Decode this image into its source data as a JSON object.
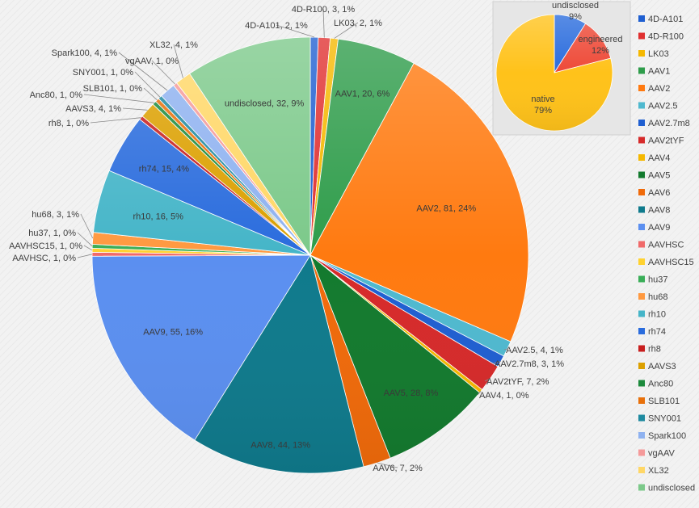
{
  "chart_data": [
    {
      "type": "pie",
      "title": "",
      "slices": [
        {
          "name": "4D-A101",
          "count": 2,
          "percent": "1%",
          "color": "#1f5fd1"
        },
        {
          "name": "4D-R100",
          "count": 3,
          "percent": "1%",
          "color": "#e03030"
        },
        {
          "name": "LK03",
          "count": 2,
          "percent": "1%",
          "color": "#f5b800"
        },
        {
          "name": "AAV1",
          "count": 20,
          "percent": "6%",
          "color": "#2e9c4a"
        },
        {
          "name": "AAV2",
          "count": 81,
          "percent": "24%",
          "color": "#ff7a10"
        },
        {
          "name": "AAV2.5",
          "count": 4,
          "percent": "1%",
          "color": "#4fb9cf"
        },
        {
          "name": "AAV2.7m8",
          "count": 3,
          "percent": "1%",
          "color": "#1f5fd1"
        },
        {
          "name": "AAV2tYF",
          "count": 7,
          "percent": "2%",
          "color": "#d62a2a"
        },
        {
          "name": "AAV4",
          "count": 1,
          "percent": "0%",
          "color": "#f5b800"
        },
        {
          "name": "AAV5",
          "count": 28,
          "percent": "8%",
          "color": "#137a2e"
        },
        {
          "name": "AAV6",
          "count": 7,
          "percent": "2%",
          "color": "#f06a0a"
        },
        {
          "name": "AAV8",
          "count": 44,
          "percent": "13%",
          "color": "#0f7a8c"
        },
        {
          "name": "AAV9",
          "count": 55,
          "percent": "16%",
          "color": "#5b8ff0"
        },
        {
          "name": "AAVHSC",
          "count": 1,
          "percent": "0%",
          "color": "#f06a6a"
        },
        {
          "name": "AAVHSC15",
          "count": 1,
          "percent": "0%",
          "color": "#ffd230"
        },
        {
          "name": "hu37",
          "count": 1,
          "percent": "0%",
          "color": "#3aae58"
        },
        {
          "name": "hu68",
          "count": 3,
          "percent": "1%",
          "color": "#ff9940"
        },
        {
          "name": "rh10",
          "count": 16,
          "percent": "5%",
          "color": "#45b5c8"
        },
        {
          "name": "rh74",
          "count": 15,
          "percent": "4%",
          "color": "#2a6cdd"
        },
        {
          "name": "rh8",
          "count": 1,
          "percent": "0%",
          "color": "#c81e1e"
        },
        {
          "name": "AAVS3",
          "count": 4,
          "percent": "1%",
          "color": "#dca000"
        },
        {
          "name": "Anc80",
          "count": 1,
          "percent": "0%",
          "color": "#1c8a3c"
        },
        {
          "name": "SLB101",
          "count": 1,
          "percent": "0%",
          "color": "#e8700a"
        },
        {
          "name": "SNY001",
          "count": 1,
          "percent": "0%",
          "color": "#1f8aa0"
        },
        {
          "name": "Spark100",
          "count": 4,
          "percent": "1%",
          "color": "#8fb2f0"
        },
        {
          "name": "vgAAV",
          "count": 1,
          "percent": "0%",
          "color": "#f59a9a"
        },
        {
          "name": "XL32",
          "count": 4,
          "percent": "1%",
          "color": "#ffd766"
        },
        {
          "name": "undisclosed",
          "count": 32,
          "percent": "9%",
          "color": "#7cc98a"
        }
      ],
      "data_labels": [
        {
          "name": "4D-A101",
          "text": "4D-A101, 2, 1%"
        },
        {
          "name": "4D-R100",
          "text": "4D-R100, 3, 1%"
        },
        {
          "name": "LK03",
          "text": "LK03, 2, 1%"
        },
        {
          "name": "AAV1",
          "text": "AAV1, 20, 6%"
        },
        {
          "name": "AAV2",
          "text": "AAV2, 81, 24%"
        },
        {
          "name": "AAV2.5",
          "text": "AAV2.5, 4, 1%"
        },
        {
          "name": "AAV2.7m8",
          "text": "AAV2.7m8, 3, 1%"
        },
        {
          "name": "AAV2tYF",
          "text": "AAV2tYF, 7, 2%"
        },
        {
          "name": "AAV4",
          "text": "AAV4, 1, 0%"
        },
        {
          "name": "AAV5",
          "text": "AAV5, 28, 8%"
        },
        {
          "name": "AAV6",
          "text": "AAV6, 7, 2%"
        },
        {
          "name": "AAV8",
          "text": "AAV8, 44, 13%"
        },
        {
          "name": "AAV9",
          "text": "AAV9, 55, 16%"
        },
        {
          "name": "AAVHSC",
          "text": "AAVHSC, 1, 0%"
        },
        {
          "name": "AAVHSC15",
          "text": "AAVHSC15, 1, 0%"
        },
        {
          "name": "hu37",
          "text": "hu37, 1, 0%"
        },
        {
          "name": "hu68",
          "text": "hu68, 3, 1%"
        },
        {
          "name": "rh10",
          "text": "rh10, 16, 5%"
        },
        {
          "name": "rh74",
          "text": "rh74, 15, 4%"
        },
        {
          "name": "rh8",
          "text": "rh8, 1, 0%"
        },
        {
          "name": "AAVS3",
          "text": "AAVS3, 4, 1%"
        },
        {
          "name": "Anc80",
          "text": "Anc80, 1, 0%"
        },
        {
          "name": "SLB101",
          "text": "SLB101, 1, 0%"
        },
        {
          "name": "SNY001",
          "text": "SNY001, 1, 0%"
        },
        {
          "name": "Spark100",
          "text": "Spark100, 4, 1%"
        },
        {
          "name": "vgAAV",
          "text": "vgAAV, 1, 0%"
        },
        {
          "name": "XL32",
          "text": "XL32, 4, 1%"
        },
        {
          "name": "undisclosed",
          "text": "undisclosed, 32, 9%"
        }
      ],
      "legend": {
        "position": "right",
        "entries": [
          "4D-A101",
          "4D-R100",
          "LK03",
          "AAV1",
          "AAV2",
          "AAV2.5",
          "AAV2.7m8",
          "AAV2tYF",
          "AAV4",
          "AAV5",
          "AAV6",
          "AAV8",
          "AAV9",
          "AAVHSC",
          "AAVHSC15",
          "hu37",
          "hu68",
          "rh10",
          "rh74",
          "rh8",
          "AAVS3",
          "Anc80",
          "SLB101",
          "SNY001",
          "Spark100",
          "vgAAV",
          "XL32",
          "undisclosed"
        ]
      }
    },
    {
      "type": "pie",
      "title": "",
      "slices": [
        {
          "name": "undisclosed",
          "percent": 9,
          "label": "undisclosed",
          "percent_label": "9%",
          "color": "#2a6cdd"
        },
        {
          "name": "engineered",
          "percent": 12,
          "label": "engineered",
          "percent_label": "12%",
          "color": "#ee4a38"
        },
        {
          "name": "native",
          "percent": 79,
          "label": "native",
          "percent_label": "79%",
          "color": "#ffc21a"
        }
      ]
    }
  ]
}
